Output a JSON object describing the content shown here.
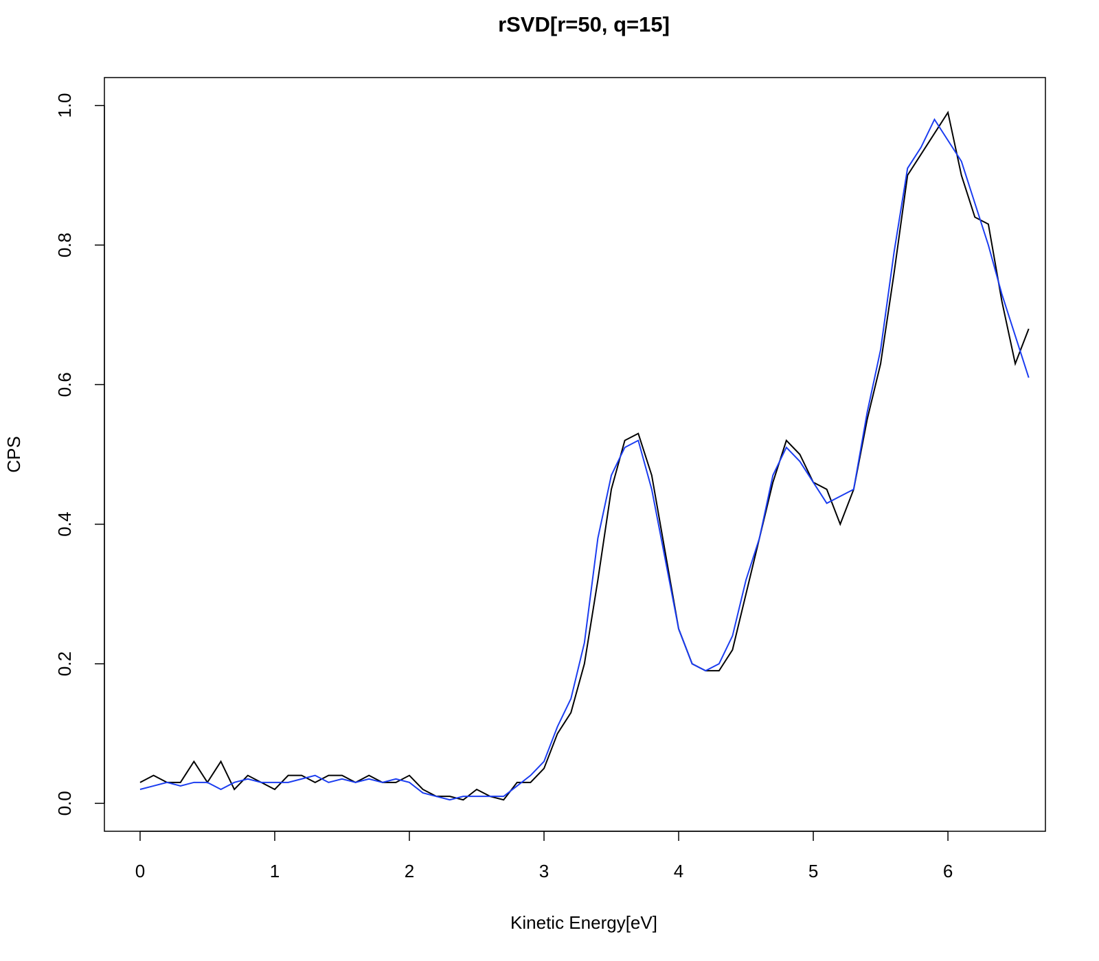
{
  "chart_data": {
    "type": "line",
    "title": "rSVD[r=50, q=15]",
    "x_label": "Kinetic Energy[eV]",
    "y_label": "CPS",
    "x": [
      0,
      0.1,
      0.2,
      0.3,
      0.4,
      0.5,
      0.6,
      0.7,
      0.8,
      0.9,
      1.0,
      1.1,
      1.2,
      1.3,
      1.4,
      1.5,
      1.6,
      1.7,
      1.8,
      1.9,
      2.0,
      2.1,
      2.2,
      2.3,
      2.4,
      2.5,
      2.6,
      2.7,
      2.8,
      2.9,
      3.0,
      3.1,
      3.2,
      3.3,
      3.4,
      3.5,
      3.6,
      3.7,
      3.8,
      3.9,
      4.0,
      4.1,
      4.2,
      4.3,
      4.4,
      4.5,
      4.6,
      4.7,
      4.8,
      4.9,
      5.0,
      5.1,
      5.2,
      5.3,
      5.4,
      5.5,
      5.6,
      5.7,
      5.8,
      5.9,
      6.0,
      6.1,
      6.2,
      6.3,
      6.4,
      6.5,
      6.6
    ],
    "series": [
      {
        "color": "#000000",
        "values": [
          0.03,
          0.04,
          0.03,
          0.03,
          0.06,
          0.03,
          0.06,
          0.02,
          0.04,
          0.03,
          0.02,
          0.04,
          0.04,
          0.03,
          0.04,
          0.04,
          0.03,
          0.04,
          0.03,
          0.03,
          0.04,
          0.02,
          0.01,
          0.01,
          0.005,
          0.02,
          0.01,
          0.005,
          0.03,
          0.03,
          0.05,
          0.1,
          0.13,
          0.2,
          0.32,
          0.45,
          0.52,
          0.53,
          0.47,
          0.36,
          0.25,
          0.2,
          0.19,
          0.19,
          0.22,
          0.3,
          0.38,
          0.46,
          0.52,
          0.5,
          0.46,
          0.45,
          0.4,
          0.45,
          0.55,
          0.63,
          0.76,
          0.9,
          0.93,
          0.96,
          0.99,
          0.9,
          0.84,
          0.83,
          0.72,
          0.63,
          0.68
        ]
      },
      {
        "color": "#1a3cf0",
        "values": [
          0.02,
          0.025,
          0.03,
          0.025,
          0.03,
          0.03,
          0.02,
          0.03,
          0.035,
          0.03,
          0.03,
          0.03,
          0.035,
          0.04,
          0.03,
          0.035,
          0.03,
          0.035,
          0.03,
          0.035,
          0.03,
          0.015,
          0.01,
          0.005,
          0.01,
          0.01,
          0.01,
          0.01,
          0.025,
          0.04,
          0.06,
          0.11,
          0.15,
          0.23,
          0.38,
          0.47,
          0.51,
          0.52,
          0.45,
          0.35,
          0.25,
          0.2,
          0.19,
          0.2,
          0.24,
          0.32,
          0.38,
          0.47,
          0.51,
          0.49,
          0.46,
          0.43,
          0.44,
          0.45,
          0.56,
          0.65,
          0.79,
          0.91,
          0.94,
          0.98,
          0.95,
          0.92,
          0.86,
          0.8,
          0.73,
          0.67,
          0.61
        ]
      }
    ],
    "xlim": [
      -0.265,
      6.724
    ],
    "ylim": [
      -0.04,
      1.04
    ],
    "xticks": [
      0,
      1,
      2,
      3,
      4,
      5,
      6
    ],
    "yticks": [
      {
        "value": 0,
        "label": "0.0"
      },
      0.2,
      0.4,
      0.6,
      0.8,
      {
        "value": 1,
        "label": "1.0"
      }
    ],
    "grid": false
  }
}
